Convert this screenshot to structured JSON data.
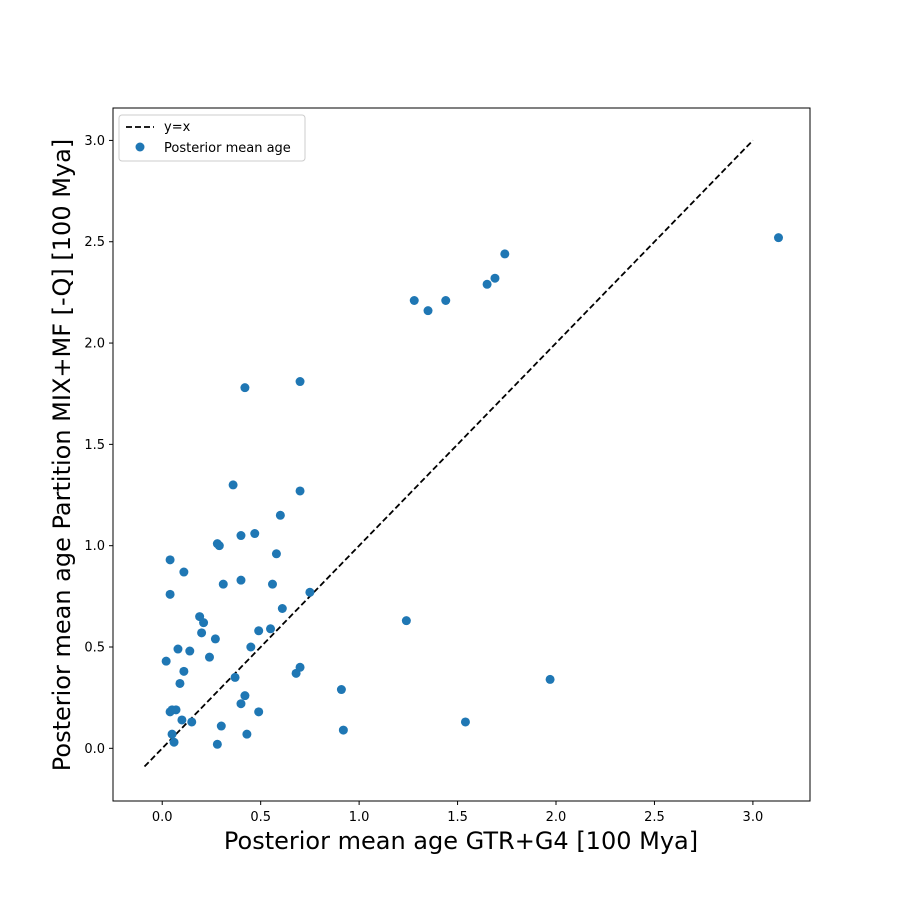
{
  "chart_data": {
    "type": "scatter",
    "xlabel": "Posterior mean age GTR+G4 [100 Mya]",
    "ylabel": "Posterior mean age Partition MIX+MF [-Q] [100 Mya]",
    "xlim": [
      -0.25,
      3.29
    ],
    "ylim": [
      -0.26,
      3.16
    ],
    "xticks": [
      "0.0",
      "0.5",
      "1.0",
      "1.5",
      "2.0",
      "2.5",
      "3.0"
    ],
    "yticks": [
      "0.0",
      "0.5",
      "1.0",
      "1.5",
      "2.0",
      "2.5",
      "3.0"
    ],
    "grid": false,
    "legend_position": "top-left",
    "colors": {
      "points": "#1f77b4",
      "line": "#000000"
    },
    "series": [
      {
        "name": "y=x",
        "kind": "line",
        "style": "dashed",
        "x": [
          -0.09,
          3.0
        ],
        "y": [
          -0.09,
          3.0
        ]
      },
      {
        "name": "Posterior mean age",
        "kind": "scatter",
        "points": [
          [
            0.02,
            0.43
          ],
          [
            0.04,
            0.93
          ],
          [
            0.04,
            0.76
          ],
          [
            0.04,
            0.18
          ],
          [
            0.05,
            0.19
          ],
          [
            0.05,
            0.07
          ],
          [
            0.06,
            0.03
          ],
          [
            0.07,
            0.19
          ],
          [
            0.08,
            0.49
          ],
          [
            0.09,
            0.32
          ],
          [
            0.1,
            0.14
          ],
          [
            0.11,
            0.38
          ],
          [
            0.11,
            0.87
          ],
          [
            0.14,
            0.48
          ],
          [
            0.15,
            0.13
          ],
          [
            0.19,
            0.65
          ],
          [
            0.2,
            0.57
          ],
          [
            0.21,
            0.62
          ],
          [
            0.24,
            0.45
          ],
          [
            0.27,
            0.54
          ],
          [
            0.28,
            1.01
          ],
          [
            0.29,
            1.0
          ],
          [
            0.28,
            0.02
          ],
          [
            0.3,
            0.11
          ],
          [
            0.31,
            0.81
          ],
          [
            0.36,
            1.3
          ],
          [
            0.37,
            0.35
          ],
          [
            0.4,
            1.05
          ],
          [
            0.4,
            0.83
          ],
          [
            0.4,
            0.22
          ],
          [
            0.42,
            0.26
          ],
          [
            0.43,
            0.07
          ],
          [
            0.42,
            1.78
          ],
          [
            0.45,
            0.5
          ],
          [
            0.47,
            1.06
          ],
          [
            0.49,
            0.18
          ],
          [
            0.49,
            0.58
          ],
          [
            0.55,
            0.59
          ],
          [
            0.56,
            0.81
          ],
          [
            0.58,
            0.96
          ],
          [
            0.6,
            1.15
          ],
          [
            0.61,
            0.69
          ],
          [
            0.68,
            0.37
          ],
          [
            0.7,
            0.4
          ],
          [
            0.7,
            1.27
          ],
          [
            0.7,
            1.81
          ],
          [
            0.75,
            0.77
          ],
          [
            0.91,
            0.29
          ],
          [
            0.92,
            0.09
          ],
          [
            1.24,
            0.63
          ],
          [
            1.28,
            2.21
          ],
          [
            1.35,
            2.16
          ],
          [
            1.44,
            2.21
          ],
          [
            1.54,
            0.13
          ],
          [
            1.65,
            2.29
          ],
          [
            1.69,
            2.32
          ],
          [
            1.74,
            2.44
          ],
          [
            1.97,
            0.34
          ],
          [
            3.13,
            2.52
          ]
        ]
      }
    ]
  }
}
